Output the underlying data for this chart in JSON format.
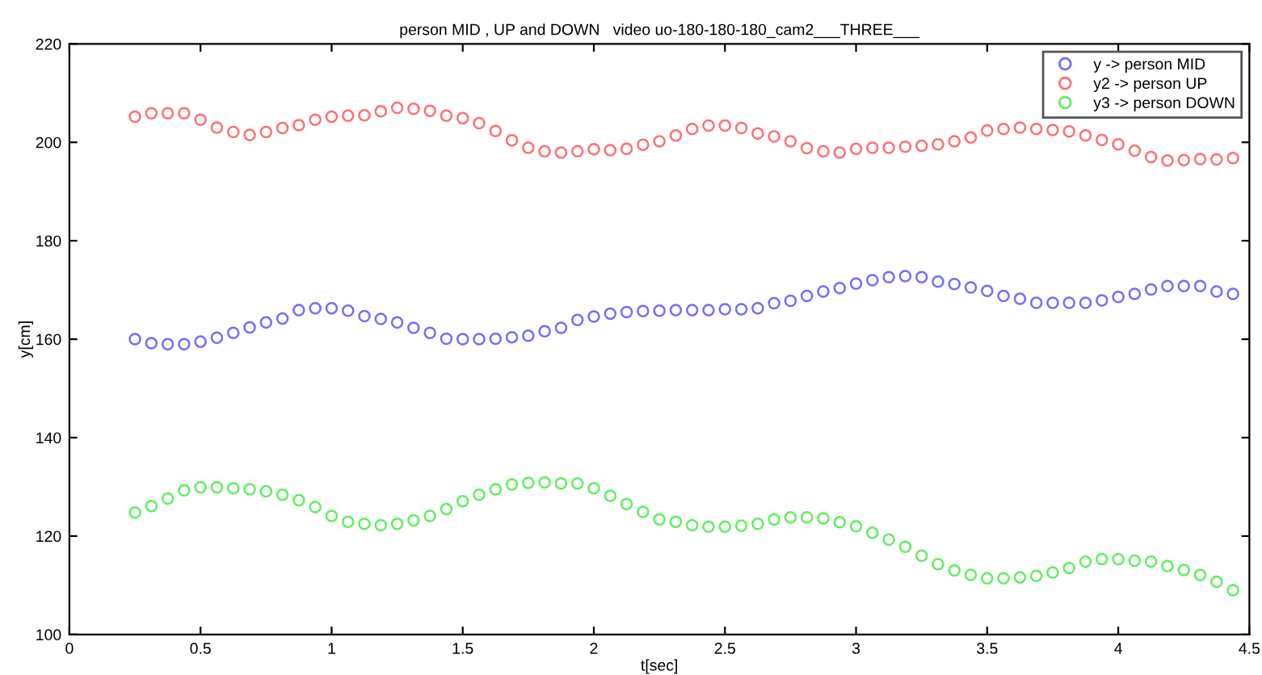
{
  "chart_data": {
    "type": "scatter",
    "title": "person MID , UP and DOWN   video uo-180-180-180_cam2___THREE___",
    "xlabel": "t[sec]",
    "ylabel": "y[cm]",
    "x": [
      0.25,
      0.3125,
      0.375,
      0.4375,
      0.5,
      0.5625,
      0.625,
      0.6875,
      0.75,
      0.8125,
      0.875,
      0.9375,
      1,
      1.0625,
      1.125,
      1.1875,
      1.25,
      1.3125,
      1.375,
      1.4375,
      1.5,
      1.5625,
      1.625,
      1.6875,
      1.75,
      1.8125,
      1.875,
      1.9375,
      2,
      2.0625,
      2.125,
      2.1875,
      2.25,
      2.3125,
      2.375,
      2.4375,
      2.5,
      2.5625,
      2.625,
      2.6875,
      2.75,
      2.8125,
      2.875,
      2.9375,
      3,
      3.0625,
      3.125,
      3.1875,
      3.25,
      3.3125,
      3.375,
      3.4375,
      3.5,
      3.5625,
      3.625,
      3.6875,
      3.75,
      3.8125,
      3.875,
      3.9375,
      4,
      4.0625,
      4.125,
      4.1875,
      4.25,
      4.3125,
      4.375,
      4.4375
    ],
    "series": [
      {
        "name": "y -> person MID",
        "color": "#6f6fff",
        "values": [
          160.0,
          159.2,
          159.0,
          159.0,
          159.5,
          160.3,
          161.3,
          162.4,
          163.4,
          164.2,
          165.9,
          166.3,
          166.3,
          165.8,
          164.7,
          164.1,
          163.4,
          162.3,
          161.3,
          160.1,
          160.0,
          160.0,
          160.1,
          160.4,
          160.7,
          161.6,
          162.3,
          163.9,
          164.6,
          165.2,
          165.5,
          165.7,
          165.8,
          165.9,
          165.9,
          165.9,
          166.1,
          166.1,
          166.3,
          167.3,
          167.8,
          168.8,
          169.7,
          170.4,
          171.3,
          172.0,
          172.6,
          172.8,
          172.6,
          171.7,
          171.2,
          170.5,
          169.8,
          168.8,
          168.2,
          167.4,
          167.4,
          167.4,
          167.4,
          167.9,
          168.6,
          169.2,
          170.1,
          170.8,
          170.8,
          170.8,
          169.7,
          169.2
        ]
      },
      {
        "name": "y2 -> person UP",
        "color": "#ff6f6f",
        "values": [
          205.2,
          205.9,
          205.9,
          205.9,
          204.6,
          203.0,
          202.1,
          201.5,
          202.1,
          202.9,
          203.5,
          204.6,
          205.2,
          205.4,
          205.5,
          206.3,
          207.0,
          206.8,
          206.4,
          205.4,
          204.9,
          203.9,
          202.3,
          200.4,
          198.9,
          198.2,
          197.9,
          198.2,
          198.6,
          198.4,
          198.7,
          199.5,
          200.2,
          201.4,
          202.7,
          203.4,
          203.4,
          202.9,
          201.8,
          201.2,
          200.2,
          198.8,
          198.2,
          197.9,
          198.7,
          198.9,
          198.9,
          199.1,
          199.3,
          199.6,
          200.2,
          201.0,
          202.4,
          202.7,
          203.0,
          202.7,
          202.5,
          202.2,
          201.4,
          200.5,
          199.6,
          198.3,
          197.0,
          196.3,
          196.4,
          196.6,
          196.5,
          196.8
        ]
      },
      {
        "name": "y3 -> person DOWN",
        "color": "#5fef5f",
        "values": [
          124.8,
          126.1,
          127.6,
          129.3,
          129.9,
          129.9,
          129.7,
          129.5,
          129.1,
          128.4,
          127.3,
          125.9,
          124.1,
          122.9,
          122.5,
          122.2,
          122.5,
          123.2,
          124.1,
          125.5,
          127.1,
          128.4,
          129.5,
          130.5,
          130.8,
          130.9,
          130.7,
          130.7,
          129.7,
          128.2,
          126.5,
          124.9,
          123.4,
          122.9,
          122.2,
          121.9,
          121.9,
          122.1,
          122.5,
          123.4,
          123.8,
          123.8,
          123.6,
          122.8,
          122.0,
          120.7,
          119.3,
          117.8,
          116.0,
          114.3,
          113.0,
          112.1,
          111.4,
          111.4,
          111.6,
          111.9,
          112.6,
          113.5,
          114.8,
          115.3,
          115.3,
          115.0,
          114.8,
          113.9,
          113.1,
          112.1,
          110.7,
          109.0
        ]
      }
    ],
    "xlim": [
      0,
      4.5
    ],
    "xticks": [
      0,
      0.5,
      1,
      1.5,
      2,
      2.5,
      3,
      3.5,
      4,
      4.5
    ],
    "ylim": [
      100,
      220
    ],
    "yticks": [
      100,
      120,
      140,
      160,
      180,
      200,
      220
    ],
    "marker": "circle",
    "legend": "top right",
    "grid": false
  }
}
